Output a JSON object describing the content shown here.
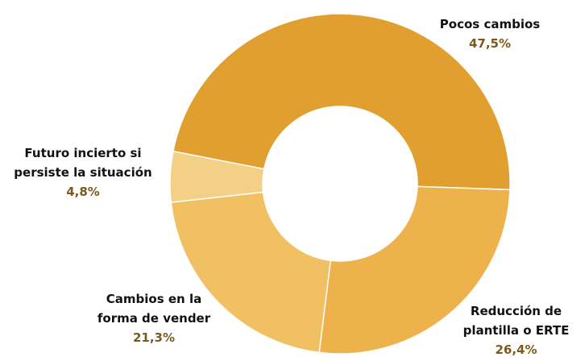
{
  "chart_data": {
    "type": "donut",
    "categories": [
      "Pocos cambios",
      "Reducción de plantilla o ERTE",
      "Cambios en la forma de vender",
      "Futuro incierto si persiste la situación"
    ],
    "values": [
      47.5,
      26.4,
      21.3,
      4.8
    ],
    "value_labels": [
      "47,5%",
      "26,4%",
      "21,3%",
      "4,8%"
    ],
    "colors": [
      "#e09f2e",
      "#edb24c",
      "#f0c062",
      "#f4cf86"
    ]
  }
}
